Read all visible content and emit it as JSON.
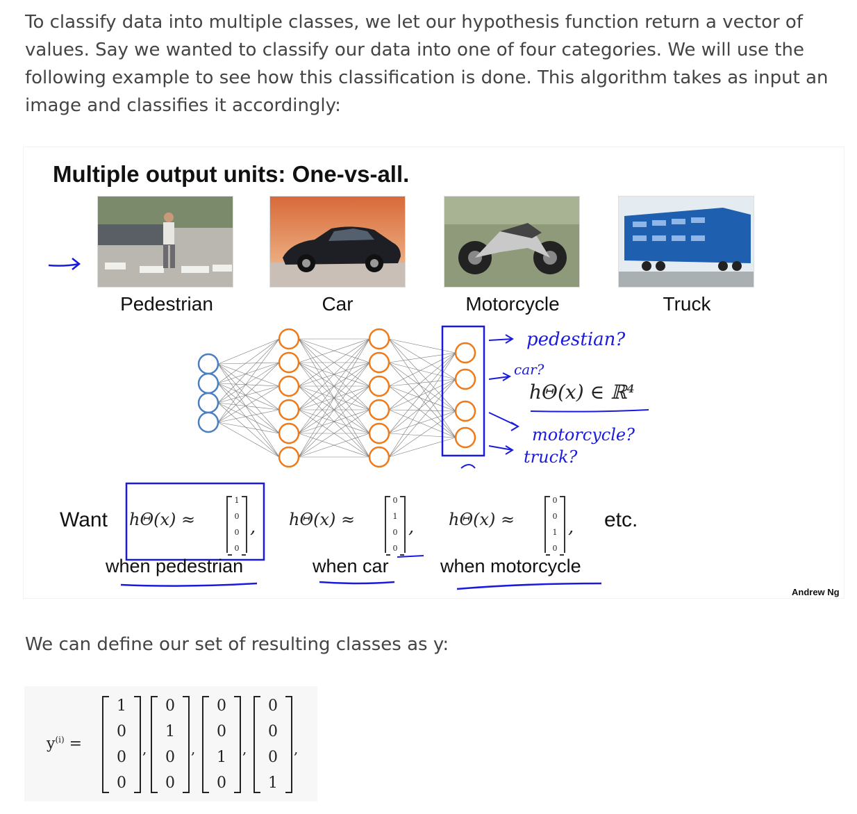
{
  "intro_text": "To classify data into multiple classes, we let our hypothesis function return a vector of values. Say we wanted to classify our data into one of four categories. We will use the following example to see how this classification is done. This algorithm takes as input an image and classifies it accordingly:",
  "slide": {
    "title": "Multiple output units: One-vs-all.",
    "categories": [
      "Pedestrian",
      "Car",
      "Motorcycle",
      "Truck"
    ],
    "annotations": {
      "pedestrian": "pedestian?",
      "car": "car?",
      "motorcycle": "motorcycle?",
      "truck": "truck?",
      "hypothesis_space": "hΘ(x) ∈ ℝ⁴"
    },
    "want_label": "Want",
    "hypothesis": "hΘ(x) ≈",
    "vectors": [
      [
        "1",
        "0",
        "0",
        "0"
      ],
      [
        "0",
        "1",
        "0",
        "0"
      ],
      [
        "0",
        "0",
        "1",
        "0"
      ]
    ],
    "when_labels": [
      "when pedestrian",
      "when car",
      "when motorcycle"
    ],
    "etc": "etc.",
    "credit": "Andrew Ng"
  },
  "classes_text": "We can define our set of resulting classes as y:",
  "equation": {
    "lhs": "y",
    "lhs_sup": "(i)",
    "equals": "=",
    "vectors": [
      [
        "1",
        "0",
        "0",
        "0"
      ],
      [
        "0",
        "1",
        "0",
        "0"
      ],
      [
        "0",
        "0",
        "1",
        "0"
      ],
      [
        "0",
        "0",
        "0",
        "1"
      ]
    ],
    "separator": ","
  },
  "colors": {
    "text": "#444444",
    "neuron": "#f07a1a",
    "input_neuron": "#4a7fc1",
    "ink": "#1a1add"
  }
}
